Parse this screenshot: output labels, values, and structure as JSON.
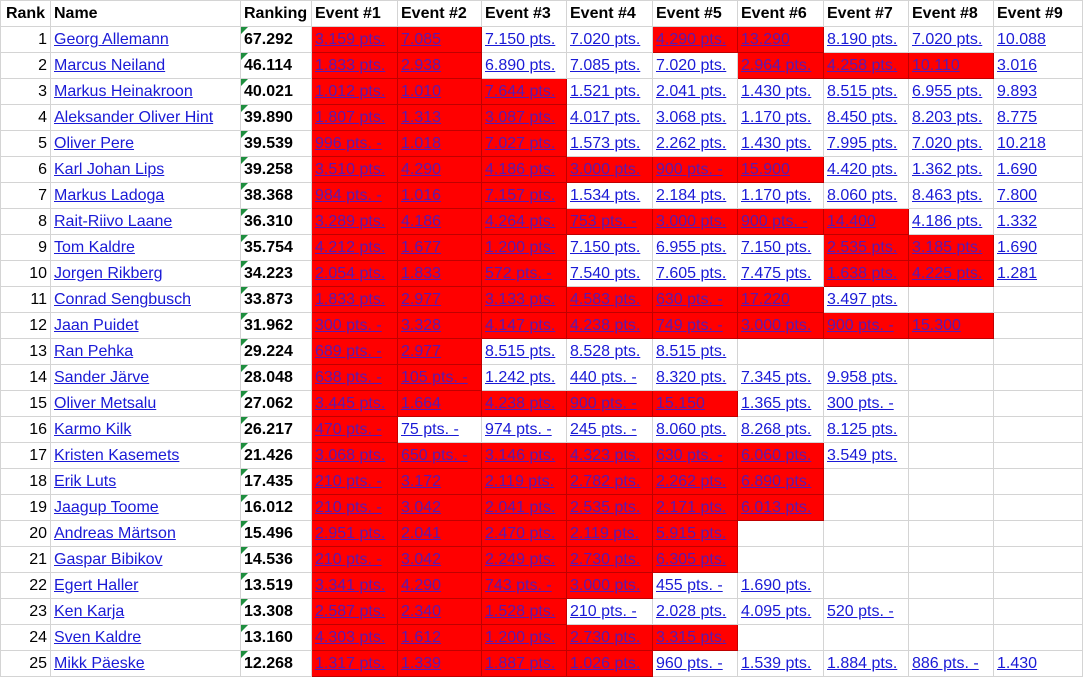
{
  "headers": [
    "Rank",
    "Name",
    "Ranking",
    "Event #1",
    "Event #2",
    "Event #3",
    "Event #4",
    "Event #5",
    "Event #6",
    "Event #7",
    "Event #8",
    "Event #9"
  ],
  "colors": {
    "highlight": "#ff0000",
    "link": "#1a1ad6",
    "indicator": "#1e8e3e"
  },
  "rows": [
    {
      "rank": "1",
      "name": "Georg Allemann",
      "score": "67.292",
      "events": [
        {
          "v": "3.159 pts.",
          "red": true
        },
        {
          "v": "7.085",
          "red": true
        },
        {
          "v": "7.150 pts.",
          "red": false
        },
        {
          "v": "7.020 pts.",
          "red": false
        },
        {
          "v": "4.290 pts.",
          "red": true
        },
        {
          "v": "13.290",
          "red": true
        },
        {
          "v": "8.190 pts.",
          "red": false
        },
        {
          "v": "7.020 pts.",
          "red": false
        },
        {
          "v": "10.088",
          "red": false
        }
      ]
    },
    {
      "rank": "2",
      "name": "Marcus Neiland",
      "score": "46.114",
      "events": [
        {
          "v": "1.833 pts.",
          "red": true
        },
        {
          "v": "2.938",
          "red": true
        },
        {
          "v": "6.890 pts.",
          "red": false
        },
        {
          "v": "7.085 pts.",
          "red": false
        },
        {
          "v": "7.020 pts.",
          "red": false
        },
        {
          "v": "2.964 pts.",
          "red": true
        },
        {
          "v": "4.258 pts.",
          "red": true
        },
        {
          "v": "10.110",
          "red": true
        },
        {
          "v": "3.016",
          "red": false
        }
      ]
    },
    {
      "rank": "3",
      "name": "Markus Heinakroon",
      "score": "40.021",
      "events": [
        {
          "v": "1.012 pts.",
          "red": true
        },
        {
          "v": "1.010",
          "red": true
        },
        {
          "v": "7.644 pts.",
          "red": true
        },
        {
          "v": "1.521 pts.",
          "red": false
        },
        {
          "v": "2.041 pts.",
          "red": false
        },
        {
          "v": "1.430 pts.",
          "red": false
        },
        {
          "v": "8.515 pts.",
          "red": false
        },
        {
          "v": "6.955 pts.",
          "red": false
        },
        {
          "v": "9.893",
          "red": false
        }
      ]
    },
    {
      "rank": "4",
      "name": "Aleksander Oliver Hint",
      "score": "39.890",
      "events": [
        {
          "v": "1.807 pts.",
          "red": true
        },
        {
          "v": "1.313",
          "red": true
        },
        {
          "v": "3.087 pts.",
          "red": true
        },
        {
          "v": "4.017 pts.",
          "red": false
        },
        {
          "v": "3.068 pts.",
          "red": false
        },
        {
          "v": "1.170 pts.",
          "red": false
        },
        {
          "v": "8.450 pts.",
          "red": false
        },
        {
          "v": "8.203 pts.",
          "red": false
        },
        {
          "v": "8.775",
          "red": false
        }
      ]
    },
    {
      "rank": "5",
      "name": "Oliver Pere",
      "score": "39.539",
      "events": [
        {
          "v": "996 pts. -",
          "red": true
        },
        {
          "v": "1.018",
          "red": true
        },
        {
          "v": "7.027 pts.",
          "red": true
        },
        {
          "v": "1.573 pts.",
          "red": false
        },
        {
          "v": "2.262 pts.",
          "red": false
        },
        {
          "v": "1.430 pts.",
          "red": false
        },
        {
          "v": "7.995 pts.",
          "red": false
        },
        {
          "v": "7.020 pts.",
          "red": false
        },
        {
          "v": "10.218",
          "red": false
        }
      ]
    },
    {
      "rank": "6",
      "name": "Karl Johan Lips",
      "score": "39.258",
      "events": [
        {
          "v": "3.510 pts.",
          "red": true
        },
        {
          "v": "4.290",
          "red": true
        },
        {
          "v": "4.186 pts.",
          "red": true
        },
        {
          "v": "3.000 pts.",
          "red": true
        },
        {
          "v": "900 pts. -",
          "red": true
        },
        {
          "v": "15.900",
          "red": true
        },
        {
          "v": "4.420 pts.",
          "red": false
        },
        {
          "v": "1.362 pts.",
          "red": false
        },
        {
          "v": "1.690",
          "red": false
        }
      ]
    },
    {
      "rank": "7",
      "name": "Markus Ladoga",
      "score": "38.368",
      "events": [
        {
          "v": "984 pts. -",
          "red": true
        },
        {
          "v": "1.016",
          "red": true
        },
        {
          "v": "7.157 pts.",
          "red": true
        },
        {
          "v": "1.534 pts.",
          "red": false
        },
        {
          "v": "2.184 pts.",
          "red": false
        },
        {
          "v": "1.170 pts.",
          "red": false
        },
        {
          "v": "8.060 pts.",
          "red": false
        },
        {
          "v": "8.463 pts.",
          "red": false
        },
        {
          "v": "7.800",
          "red": false
        }
      ]
    },
    {
      "rank": "8",
      "name": "Rait-Riivo Laane",
      "score": "36.310",
      "events": [
        {
          "v": "3.289 pts.",
          "red": true
        },
        {
          "v": "4.186",
          "red": true
        },
        {
          "v": "4.264 pts.",
          "red": true
        },
        {
          "v": "753 pts. -",
          "red": true
        },
        {
          "v": "3.000 pts.",
          "red": true
        },
        {
          "v": "900 pts. -",
          "red": true
        },
        {
          "v": "14.400",
          "red": true
        },
        {
          "v": "4.186 pts.",
          "red": false
        },
        {
          "v": "1.332",
          "red": false
        }
      ]
    },
    {
      "rank": "9",
      "name": "Tom Kaldre",
      "score": "35.754",
      "events": [
        {
          "v": "4.212 pts.",
          "red": true
        },
        {
          "v": "1.677",
          "red": true
        },
        {
          "v": "1.200 pts.",
          "red": true
        },
        {
          "v": "7.150 pts.",
          "red": false
        },
        {
          "v": "6.955 pts.",
          "red": false
        },
        {
          "v": "7.150 pts.",
          "red": false
        },
        {
          "v": "2.535 pts.",
          "red": true
        },
        {
          "v": "3.185 pts.",
          "red": true
        },
        {
          "v": "1.690",
          "red": false
        }
      ]
    },
    {
      "rank": "10",
      "name": "Jorgen Rikberg",
      "score": "34.223",
      "events": [
        {
          "v": "2.054 pts.",
          "red": true
        },
        {
          "v": "1.833",
          "red": true
        },
        {
          "v": "572 pts. -",
          "red": true
        },
        {
          "v": "7.540 pts.",
          "red": false
        },
        {
          "v": "7.605 pts.",
          "red": false
        },
        {
          "v": "7.475 pts.",
          "red": false
        },
        {
          "v": "1.638 pts.",
          "red": true
        },
        {
          "v": "4.225 pts.",
          "red": true
        },
        {
          "v": "1.281",
          "red": false
        }
      ]
    },
    {
      "rank": "11",
      "name": "Conrad Sengbusch",
      "score": "33.873",
      "events": [
        {
          "v": "1.833 pts.",
          "red": true
        },
        {
          "v": "2.977",
          "red": true
        },
        {
          "v": "3.133 pts.",
          "red": true
        },
        {
          "v": "4.583 pts.",
          "red": true
        },
        {
          "v": "630 pts. -",
          "red": true
        },
        {
          "v": "17.220",
          "red": true
        },
        {
          "v": "3.497 pts.",
          "red": false
        },
        {
          "v": "",
          "red": false
        },
        {
          "v": "",
          "red": false
        }
      ]
    },
    {
      "rank": "12",
      "name": "Jaan Puidet",
      "score": "31.962",
      "events": [
        {
          "v": "300 pts. -",
          "red": true
        },
        {
          "v": "3.328",
          "red": true
        },
        {
          "v": "4.147 pts.",
          "red": true
        },
        {
          "v": "4.238 pts.",
          "red": true
        },
        {
          "v": "749 pts. -",
          "red": true
        },
        {
          "v": "3.000 pts.",
          "red": true
        },
        {
          "v": "900 pts. -",
          "red": true
        },
        {
          "v": "15.300",
          "red": true
        },
        {
          "v": "",
          "red": false
        }
      ]
    },
    {
      "rank": "13",
      "name": "Ran Pehka",
      "score": "29.224",
      "events": [
        {
          "v": "689 pts. -",
          "red": true
        },
        {
          "v": "2.977",
          "red": true
        },
        {
          "v": "8.515 pts.",
          "red": false
        },
        {
          "v": "8.528 pts.",
          "red": false
        },
        {
          "v": "8.515 pts.",
          "red": false
        },
        {
          "v": "",
          "red": false
        },
        {
          "v": "",
          "red": false
        },
        {
          "v": "",
          "red": false
        },
        {
          "v": "",
          "red": false
        }
      ]
    },
    {
      "rank": "14",
      "name": "Sander Järve",
      "score": "28.048",
      "events": [
        {
          "v": "638 pts. -",
          "red": true
        },
        {
          "v": "105 pts. -",
          "red": true
        },
        {
          "v": "1.242 pts.",
          "red": false
        },
        {
          "v": "440 pts. -",
          "red": false
        },
        {
          "v": "8.320 pts.",
          "red": false
        },
        {
          "v": "7.345 pts.",
          "red": false
        },
        {
          "v": "9.958 pts.",
          "red": false
        },
        {
          "v": "",
          "red": false
        },
        {
          "v": "",
          "red": false
        }
      ]
    },
    {
      "rank": "15",
      "name": "Oliver Metsalu",
      "score": "27.062",
      "events": [
        {
          "v": "3.445 pts.",
          "red": true
        },
        {
          "v": "1.664",
          "red": true
        },
        {
          "v": "4.238 pts.",
          "red": true
        },
        {
          "v": "900 pts. -",
          "red": true
        },
        {
          "v": "15.150",
          "red": true
        },
        {
          "v": "1.365 pts.",
          "red": false
        },
        {
          "v": "300 pts. -",
          "red": false
        },
        {
          "v": "",
          "red": false
        },
        {
          "v": "",
          "red": false
        }
      ]
    },
    {
      "rank": "16",
      "name": "Karmo Kilk",
      "score": "26.217",
      "events": [
        {
          "v": "470 pts. -",
          "red": true
        },
        {
          "v": "75 pts. -",
          "red": false
        },
        {
          "v": "974 pts. -",
          "red": false
        },
        {
          "v": "245 pts. -",
          "red": false
        },
        {
          "v": "8.060 pts.",
          "red": false
        },
        {
          "v": "8.268 pts.",
          "red": false
        },
        {
          "v": "8.125 pts.",
          "red": false
        },
        {
          "v": "",
          "red": false
        },
        {
          "v": "",
          "red": false
        }
      ]
    },
    {
      "rank": "17",
      "name": "Kristen Kasemets",
      "score": "21.426",
      "events": [
        {
          "v": "3.068 pts.",
          "red": true
        },
        {
          "v": "650 pts. -",
          "red": true
        },
        {
          "v": "3.146 pts.",
          "red": true
        },
        {
          "v": "4.323 pts.",
          "red": true
        },
        {
          "v": "630 pts. -",
          "red": true
        },
        {
          "v": "6.060 pts.",
          "red": true
        },
        {
          "v": "3.549 pts.",
          "red": false
        },
        {
          "v": "",
          "red": false
        },
        {
          "v": "",
          "red": false
        }
      ]
    },
    {
      "rank": "18",
      "name": "Erik Luts",
      "score": "17.435",
      "events": [
        {
          "v": "210 pts. -",
          "red": true
        },
        {
          "v": "3.172",
          "red": true
        },
        {
          "v": "2.119 pts.",
          "red": true
        },
        {
          "v": "2.782 pts.",
          "red": true
        },
        {
          "v": "2.262 pts.",
          "red": true
        },
        {
          "v": "6.890 pts.",
          "red": true
        },
        {
          "v": "",
          "red": false
        },
        {
          "v": "",
          "red": false
        },
        {
          "v": "",
          "red": false
        }
      ]
    },
    {
      "rank": "19",
      "name": "Jaagup Toome",
      "score": "16.012",
      "events": [
        {
          "v": "210 pts. -",
          "red": true
        },
        {
          "v": "3.042",
          "red": true
        },
        {
          "v": "2.041 pts.",
          "red": true
        },
        {
          "v": "2.535 pts.",
          "red": true
        },
        {
          "v": "2.171 pts.",
          "red": true
        },
        {
          "v": "6.013 pts.",
          "red": true
        },
        {
          "v": "",
          "red": false
        },
        {
          "v": "",
          "red": false
        },
        {
          "v": "",
          "red": false
        }
      ]
    },
    {
      "rank": "20",
      "name": "Andreas Märtson",
      "score": "15.496",
      "events": [
        {
          "v": "2.951 pts.",
          "red": true
        },
        {
          "v": "2.041",
          "red": true
        },
        {
          "v": "2.470 pts.",
          "red": true
        },
        {
          "v": "2.119 pts.",
          "red": true
        },
        {
          "v": "5.915 pts.",
          "red": true
        },
        {
          "v": "",
          "red": false
        },
        {
          "v": "",
          "red": false
        },
        {
          "v": "",
          "red": false
        },
        {
          "v": "",
          "red": false
        }
      ]
    },
    {
      "rank": "21",
      "name": "Gaspar Bibikov",
      "score": "14.536",
      "events": [
        {
          "v": "210 pts. -",
          "red": true
        },
        {
          "v": "3.042",
          "red": true
        },
        {
          "v": "2.249 pts.",
          "red": true
        },
        {
          "v": "2.730 pts.",
          "red": true
        },
        {
          "v": "6.305 pts.",
          "red": true
        },
        {
          "v": "",
          "red": false
        },
        {
          "v": "",
          "red": false
        },
        {
          "v": "",
          "red": false
        },
        {
          "v": "",
          "red": false
        }
      ]
    },
    {
      "rank": "22",
      "name": "Egert Haller",
      "score": "13.519",
      "events": [
        {
          "v": "3.341 pts.",
          "red": true
        },
        {
          "v": "4.290",
          "red": true
        },
        {
          "v": "743 pts. -",
          "red": true
        },
        {
          "v": "3.000 pts.",
          "red": true
        },
        {
          "v": "455 pts. -",
          "red": false
        },
        {
          "v": "1.690 pts.",
          "red": false
        },
        {
          "v": "",
          "red": false
        },
        {
          "v": "",
          "red": false
        },
        {
          "v": "",
          "red": false
        }
      ]
    },
    {
      "rank": "23",
      "name": "Ken Karja",
      "score": "13.308",
      "events": [
        {
          "v": "2.587 pts.",
          "red": true
        },
        {
          "v": "2.340",
          "red": true
        },
        {
          "v": "1.528 pts.",
          "red": true
        },
        {
          "v": "210 pts. -",
          "red": false
        },
        {
          "v": "2.028 pts.",
          "red": false
        },
        {
          "v": "4.095 pts.",
          "red": false
        },
        {
          "v": "520 pts. -",
          "red": false
        },
        {
          "v": "",
          "red": false
        },
        {
          "v": "",
          "red": false
        }
      ]
    },
    {
      "rank": "24",
      "name": "Sven Kaldre",
      "score": "13.160",
      "events": [
        {
          "v": "4.303 pts.",
          "red": true
        },
        {
          "v": "1.612",
          "red": true
        },
        {
          "v": "1.200 pts.",
          "red": true
        },
        {
          "v": "2.730 pts.",
          "red": true
        },
        {
          "v": "3.315 pts.",
          "red": true
        },
        {
          "v": "",
          "red": false
        },
        {
          "v": "",
          "red": false
        },
        {
          "v": "",
          "red": false
        },
        {
          "v": "",
          "red": false
        }
      ]
    },
    {
      "rank": "25",
      "name": "Mikk Päeske",
      "score": "12.268",
      "events": [
        {
          "v": "1.317 pts.",
          "red": true
        },
        {
          "v": "1.339",
          "red": true
        },
        {
          "v": "1.887 pts.",
          "red": true
        },
        {
          "v": "1.026 pts.",
          "red": true
        },
        {
          "v": "960 pts. -",
          "red": false
        },
        {
          "v": "1.539 pts.",
          "red": false
        },
        {
          "v": "1.884 pts.",
          "red": false
        },
        {
          "v": "886 pts. -",
          "red": false
        },
        {
          "v": "1.430",
          "red": false
        }
      ]
    }
  ]
}
